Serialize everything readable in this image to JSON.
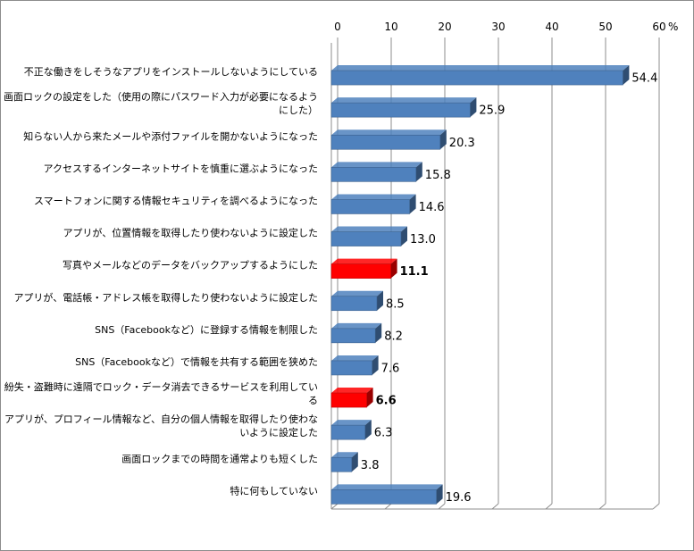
{
  "chart_data": {
    "type": "bar",
    "orientation": "horizontal",
    "unit_label": "%",
    "xlim": [
      0,
      60
    ],
    "x_ticks": [
      0,
      10,
      20,
      30,
      40,
      50,
      60
    ],
    "axis_position": "top",
    "grid": true,
    "legend": "none",
    "colors": {
      "default": "#4f81bd",
      "highlight": "#ff0000"
    },
    "categories": [
      [
        "不正な働きをしそうなアプリをインストールしないようにしている"
      ],
      [
        "画面ロックの設定をした（使用の際にパスワード入力が必要になるよう",
        "にした）"
      ],
      [
        "知らない人から来たメールや添付ファイルを開かないようになった"
      ],
      [
        "アクセスするインターネットサイトを慎重に選ぶようになった"
      ],
      [
        "スマートフォンに関する情報セキュリティを調べるようになった"
      ],
      [
        "アプリが、位置情報を取得したり使わないように設定した"
      ],
      [
        "写真やメールなどのデータをバックアップするようにした"
      ],
      [
        "アプリが、電話帳・アドレス帳を取得したり使わないように設定した"
      ],
      [
        "SNS（Facebookなど）に登録する情報を制限した"
      ],
      [
        "SNS（Facebookなど）で情報を共有する範囲を狭めた"
      ],
      [
        "紛失・盗難時に遠隔でロック・データ消去できるサービスを利用してい",
        "る"
      ],
      [
        "アプリが、プロフィール情報など、自分の個人情報を取得したり使わな",
        "いように設定した"
      ],
      [
        "画面ロックまでの時間を通常よりも短くした"
      ],
      [
        "特に何もしていない"
      ]
    ],
    "values": [
      54.4,
      25.9,
      20.3,
      15.8,
      14.6,
      13.0,
      11.1,
      8.5,
      8.2,
      7.6,
      6.6,
      6.3,
      3.8,
      19.6
    ],
    "value_labels": [
      "54.4",
      "25.9",
      "20.3",
      "15.8",
      "14.6",
      "13.0",
      "11.1",
      "8.5",
      "8.2",
      "7.6",
      "6.6",
      "6.3",
      "3.8",
      "19.6"
    ],
    "highlighted": [
      false,
      false,
      false,
      false,
      false,
      false,
      true,
      false,
      false,
      false,
      true,
      false,
      false,
      false
    ]
  }
}
